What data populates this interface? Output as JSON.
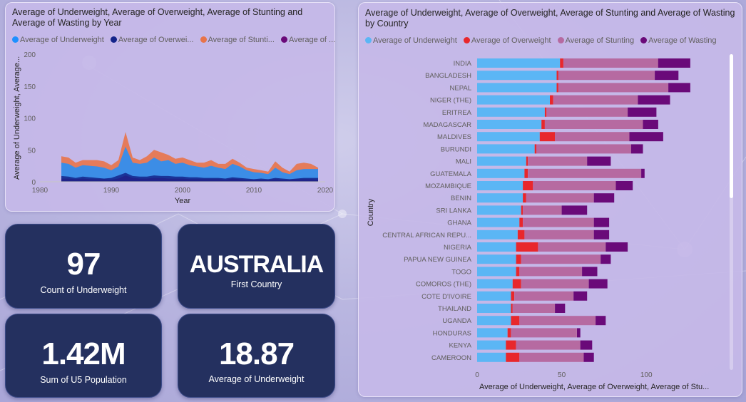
{
  "theme": {
    "underweight": "#5bb6f5",
    "overweight": "#e8272c",
    "stunting": "#b66aa1",
    "wasting": "#6a0a79",
    "year_uw": "#1e90ff",
    "year_ow": "#14248a",
    "year_st": "#e8744a",
    "year_wa": "#6a0a79",
    "card_bg": "#24305f"
  },
  "year_chart": {
    "title": "Average of Underweight, Average of Overweight, Average of Stunting and Average of Wasting by Year",
    "legend": [
      "Average of Underweight",
      "Average of Overwei...",
      "Average of Stunti...",
      "Average of ..."
    ],
    "chart_data": {
      "type": "area",
      "xlabel": "Year",
      "ylabel": "Average of Underweight, Average...",
      "xlim": [
        1980,
        2020
      ],
      "ylim": [
        0,
        200
      ],
      "xticks": [
        "1980",
        "1990",
        "2000",
        "2010",
        "2020"
      ],
      "yticks": [
        "0",
        "50",
        "100",
        "150",
        "200"
      ],
      "x": [
        1983,
        1984,
        1985,
        1986,
        1987,
        1988,
        1989,
        1990,
        1991,
        1992,
        1993,
        1994,
        1995,
        1996,
        1997,
        1998,
        1999,
        2000,
        2001,
        2002,
        2003,
        2004,
        2005,
        2006,
        2007,
        2008,
        2009,
        2010,
        2011,
        2012,
        2013,
        2014,
        2015,
        2016,
        2017,
        2018,
        2019
      ],
      "series": [
        {
          "name": "Average of Underweight",
          "values": [
            30,
            28,
            22,
            26,
            25,
            24,
            22,
            18,
            24,
            55,
            30,
            28,
            30,
            38,
            32,
            34,
            28,
            30,
            26,
            24,
            22,
            25,
            22,
            20,
            28,
            24,
            18,
            15,
            14,
            12,
            22,
            15,
            12,
            18,
            20,
            20,
            20
          ]
        },
        {
          "name": "Average of Overwei...",
          "values": [
            9,
            8,
            6,
            8,
            7,
            6,
            5,
            6,
            10,
            14,
            9,
            8,
            8,
            10,
            9,
            9,
            8,
            8,
            7,
            7,
            6,
            6,
            6,
            5,
            7,
            6,
            5,
            4,
            5,
            4,
            6,
            5,
            4,
            5,
            6,
            6,
            6
          ]
        },
        {
          "name": "Average of Stunti...",
          "values": [
            40,
            38,
            30,
            34,
            34,
            34,
            32,
            26,
            34,
            78,
            38,
            34,
            40,
            50,
            46,
            42,
            36,
            38,
            34,
            30,
            30,
            34,
            28,
            28,
            36,
            30,
            22,
            20,
            18,
            16,
            32,
            22,
            16,
            28,
            30,
            28,
            22
          ]
        },
        {
          "name": "Average of ...",
          "values": [
            5,
            5,
            4,
            5,
            4,
            4,
            4,
            3,
            5,
            10,
            6,
            5,
            5,
            6,
            6,
            5,
            5,
            5,
            4,
            4,
            4,
            4,
            4,
            3,
            5,
            4,
            3,
            3,
            3,
            3,
            4,
            3,
            3,
            4,
            4,
            4,
            3
          ]
        }
      ]
    }
  },
  "cards": [
    {
      "value": "97",
      "label": "Count of Underweight"
    },
    {
      "value": "AUSTRALIA",
      "label": "First Country"
    },
    {
      "value": "1.42M",
      "label": "Sum of U5 Population"
    },
    {
      "value": "18.87",
      "label": "Average of Underweight"
    }
  ],
  "country_chart": {
    "title": "Average of Underweight, Average of Overweight, Average of Stunting and Average of Wasting by Country",
    "legend": [
      "Average of Underweight",
      "Average of Overweight",
      "Average of Stunting",
      "Average of Wasting"
    ],
    "chart_data": {
      "type": "bar",
      "orientation": "horizontal",
      "stacked": true,
      "ylabel": "Country",
      "xlabel": "Average of Underweight, Average of Overweight, Average of Stu...",
      "xticks": [
        "0",
        "50",
        "100"
      ],
      "xlim": [
        0,
        145
      ],
      "categories": [
        "INDIA",
        "BANGLADESH",
        "NEPAL",
        "NIGER (THE)",
        "ERITREA",
        "MADAGASCAR",
        "MALDIVES",
        "BURUNDI",
        "MALI",
        "GUATEMALA",
        "MOZAMBIQUE",
        "BENIN",
        "SRI LANKA",
        "GHANA",
        "CENTRAL AFRICAN REPU...",
        "NIGERIA",
        "PAPUA NEW GUINEA",
        "TOGO",
        "COMOROS (THE)",
        "COTE D'IVOIRE",
        "THAILAND",
        "UGANDA",
        "HONDURAS",
        "KENYA",
        "CAMEROON"
      ],
      "series": [
        {
          "name": "Average of Underweight",
          "values": [
            49,
            47,
            47,
            43,
            40,
            38,
            37,
            34,
            29,
            28,
            27,
            27,
            26,
            25,
            24,
            23,
            23,
            23,
            21,
            20,
            20,
            20,
            18,
            17,
            17
          ]
        },
        {
          "name": "Average of Overweight",
          "values": [
            2,
            1,
            1,
            2,
            1,
            2,
            9,
            1,
            1,
            2,
            6,
            2,
            1,
            2,
            4,
            13,
            3,
            2,
            5,
            2,
            1,
            5,
            2,
            6,
            8
          ]
        },
        {
          "name": "Average of Stunting",
          "values": [
            56,
            57,
            65,
            50,
            48,
            58,
            44,
            56,
            35,
            67,
            49,
            40,
            23,
            42,
            41,
            40,
            47,
            37,
            40,
            35,
            25,
            45,
            39,
            38,
            38
          ]
        },
        {
          "name": "Average of Wasting",
          "values": [
            19,
            14,
            13,
            19,
            17,
            9,
            20,
            7,
            14,
            2,
            10,
            12,
            15,
            9,
            9,
            13,
            6,
            9,
            11,
            8,
            6,
            6,
            2,
            7,
            6
          ]
        }
      ]
    }
  }
}
